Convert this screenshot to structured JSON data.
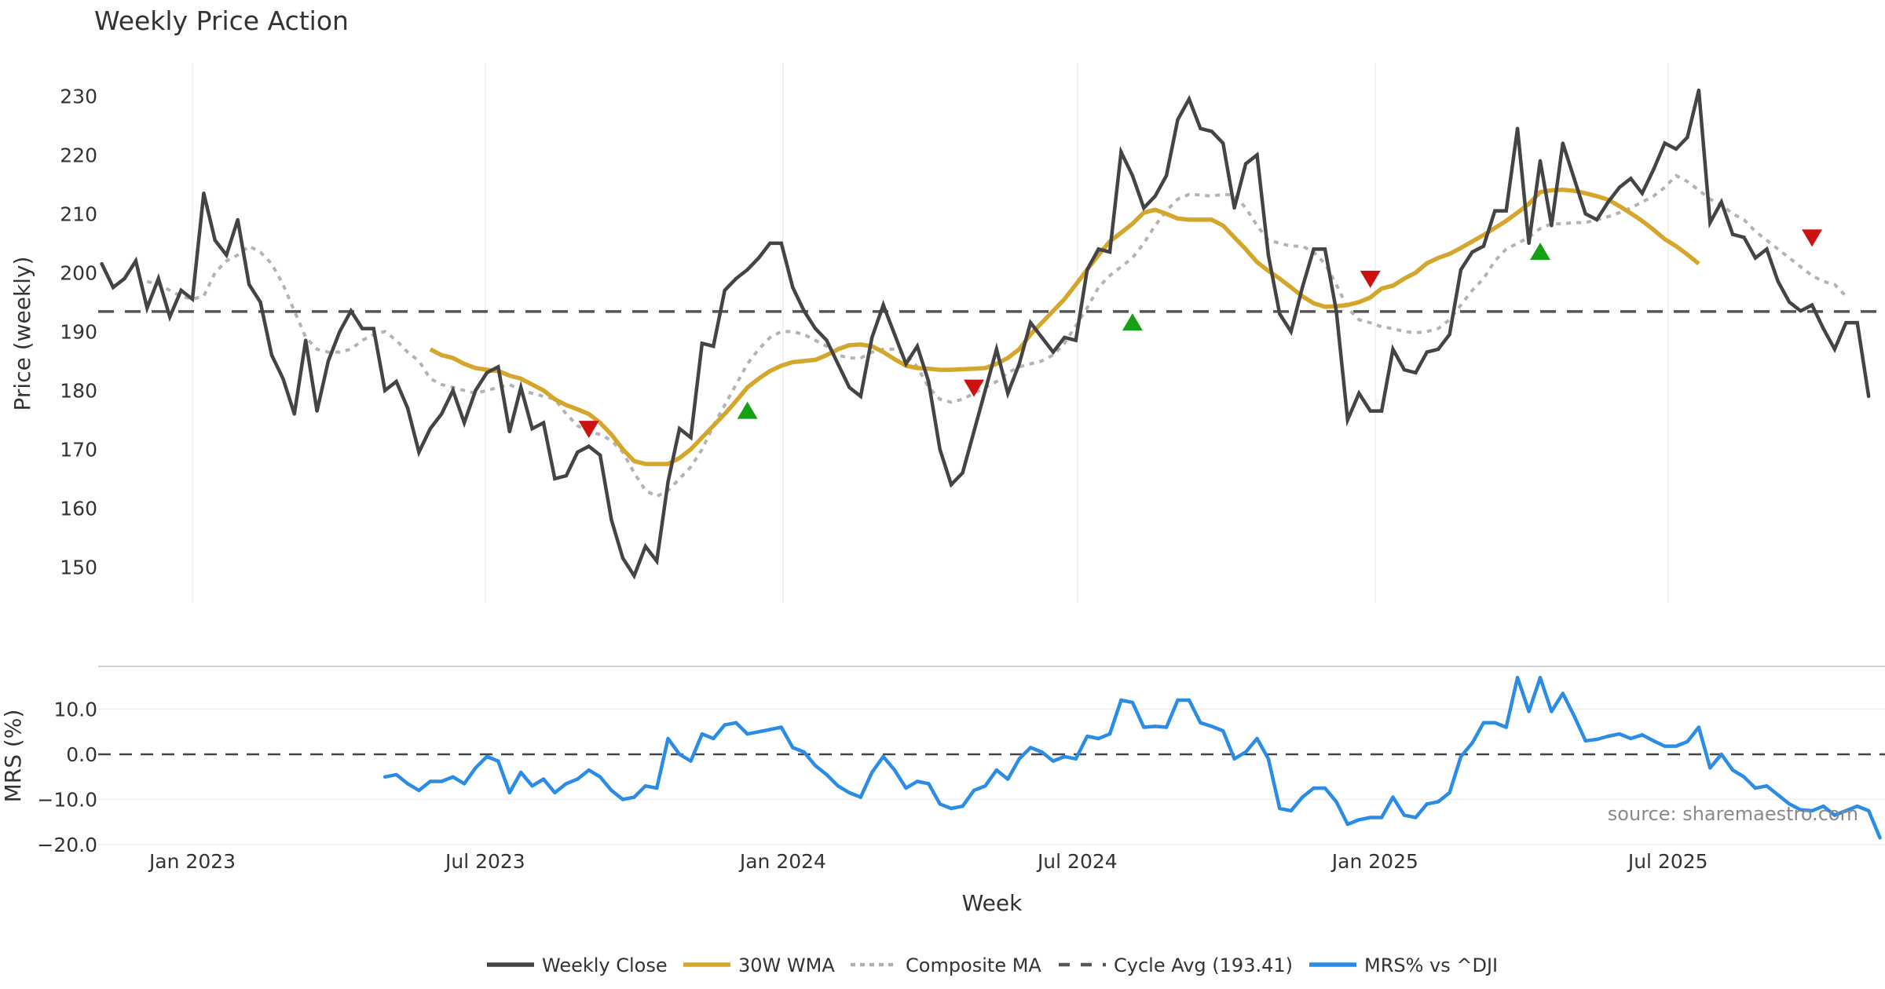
{
  "chart_data": {
    "type": "line",
    "title": "Weekly Price Action",
    "xlabel": "Week",
    "start_week": "2022-11-06",
    "x_ticks": [
      {
        "label": "Jan 2023",
        "date": "2023-01-01"
      },
      {
        "label": "Jul 2023",
        "date": "2023-07-01"
      },
      {
        "label": "Jan 2024",
        "date": "2024-01-01"
      },
      {
        "label": "Jul 2024",
        "date": "2024-07-01"
      },
      {
        "label": "Jan 2025",
        "date": "2025-01-01"
      },
      {
        "label": "Jul 2025",
        "date": "2025-07-01"
      }
    ],
    "price_panel": {
      "ylabel": "Price (weekly)",
      "ylim": [
        145,
        235
      ],
      "y_ticks": [
        "150",
        "160",
        "170",
        "180",
        "190",
        "200",
        "210",
        "220",
        "230"
      ],
      "grid": "vertical",
      "weekly_close": [
        201.5,
        197.5,
        199,
        202,
        194,
        199,
        192.5,
        197,
        195.5,
        213.5,
        205.5,
        203,
        209,
        198,
        195,
        186,
        182,
        176,
        188.5,
        176.5,
        185,
        190,
        193.5,
        190.5,
        190.5,
        180,
        181.5,
        177,
        169.5,
        173.5,
        176,
        180,
        174.5,
        180,
        183,
        184,
        173,
        180.5,
        173.5,
        174.5,
        165,
        165.5,
        169.5,
        170.5,
        169,
        158,
        151.5,
        148.5,
        153.5,
        151,
        164.5,
        173.5,
        172,
        188,
        187.5,
        197,
        199,
        200.5,
        202.5,
        205,
        205,
        197.5,
        193.5,
        190.5,
        188.5,
        184.5,
        180.5,
        179,
        189,
        194.5,
        189.5,
        184.5,
        187.5,
        181.5,
        170,
        164,
        166,
        173,
        180,
        187,
        179.5,
        184.5,
        191.5,
        189,
        186.5,
        189,
        188.5,
        200.5,
        204,
        203.5,
        220.5,
        216.5,
        211,
        213,
        216.5,
        226,
        229.5,
        224.5,
        224,
        222,
        211,
        218.5,
        220,
        203,
        193,
        190,
        197.5,
        204,
        204,
        193.5,
        175,
        179.5,
        176.5,
        176.5,
        187,
        183.5,
        183,
        186.5,
        187,
        189.5,
        200.5,
        203.5,
        204.5,
        210.5,
        210.5,
        224.5,
        205,
        219,
        208,
        222,
        216,
        210,
        209,
        212,
        214.5,
        216,
        213.5,
        217.5,
        222,
        221,
        223,
        231,
        208.5,
        212,
        206.5,
        206,
        202.5,
        204,
        198.5,
        195,
        193.5,
        194.5,
        190.5,
        187,
        191.5,
        191.5,
        179
      ],
      "wma_30w": {
        "start_index": 29,
        "values": [
          187,
          186,
          185.5,
          184.5,
          183.8,
          183.5,
          183.3,
          182.5,
          182,
          181,
          180,
          178.5,
          177.5,
          176.8,
          176,
          174.5,
          172.5,
          170,
          168,
          167.5,
          167.5,
          167.5,
          168.5,
          170,
          172,
          174,
          176,
          178.2,
          180.5,
          182,
          183.3,
          184.2,
          184.8,
          185,
          185.2,
          186,
          187,
          187.7,
          187.8,
          187.5,
          186.5,
          185.3,
          184.2,
          183.8,
          183.7,
          183.5,
          183.5,
          183.6,
          183.7,
          183.8,
          184.5,
          185.5,
          187,
          189.5,
          191.5,
          193.5,
          195.5,
          198,
          200.5,
          203,
          205.3,
          206.8,
          208.3,
          210.2,
          210.7,
          210,
          209.2,
          209,
          209,
          209,
          208,
          206,
          204,
          201.8,
          200.3,
          199,
          197.5,
          196,
          194.8,
          194.2,
          194.3,
          194.5,
          195,
          195.8,
          197.3,
          197.8,
          199,
          200,
          201.6,
          202.5,
          203.2,
          204.2,
          205.3,
          206.4,
          207.6,
          208.8,
          210.2,
          211.7,
          213.7,
          214,
          214.1,
          213.9,
          213.5,
          213,
          212.4,
          211.3,
          210.1,
          208.8,
          207.3,
          205.7,
          204.5,
          203.1,
          201.5
        ]
      },
      "composite_ma": {
        "start_index": 4,
        "values": [
          198.5,
          198,
          197,
          196,
          195.5,
          196,
          200,
          202,
          203,
          204.5,
          203.5,
          201.5,
          198,
          193.5,
          189,
          187,
          186.5,
          186.5,
          187,
          188.5,
          189.5,
          190,
          188.5,
          186.5,
          185,
          182,
          181,
          180.5,
          180,
          179.5,
          180,
          180.5,
          181,
          180,
          179.5,
          179,
          178.5,
          176,
          174,
          173,
          172.5,
          171.5,
          169.5,
          166,
          163,
          162,
          163,
          165,
          167,
          170,
          174,
          177.5,
          181,
          184.5,
          187,
          189,
          190,
          190,
          189.5,
          188.5,
          187.5,
          186,
          185.5,
          185.5,
          186.5,
          187,
          187,
          186,
          184,
          180.5,
          178.5,
          178,
          178.5,
          179.5,
          180.5,
          181.5,
          183,
          184,
          184.5,
          185,
          186,
          188,
          191,
          194,
          197.5,
          199.5,
          201,
          202.5,
          205,
          208,
          210.5,
          212.5,
          213.3,
          213.2,
          213,
          213.3,
          213.2,
          211,
          208,
          205.5,
          205,
          204.5,
          204.5,
          203.5,
          201.5,
          198,
          194,
          192,
          191.5,
          190.8,
          190.5,
          190,
          189.8,
          190,
          190.5,
          192,
          194.5,
          197,
          199,
          202,
          204,
          205,
          206,
          207.5,
          208.3,
          208.3,
          208.5,
          208.5,
          209,
          209.5,
          210.2,
          211,
          212,
          213,
          214.5,
          216.5,
          215.5,
          214,
          212.5,
          211.5,
          210,
          209,
          207,
          205.5,
          204,
          202.5,
          201,
          199.5,
          198.5,
          198,
          196
        ]
      },
      "cycle_avg": 193.41,
      "signals": [
        {
          "type": "sell",
          "index": 43,
          "value": 173.5
        },
        {
          "type": "buy",
          "index": 57,
          "value": 176.5
        },
        {
          "type": "sell",
          "index": 77,
          "value": 180.5
        },
        {
          "type": "buy",
          "index": 91,
          "value": 191.5
        },
        {
          "type": "sell",
          "index": 112,
          "value": 199
        },
        {
          "type": "buy",
          "index": 127,
          "value": 203.5
        },
        {
          "type": "sell",
          "index": 151,
          "value": 206
        }
      ]
    },
    "mrs_panel": {
      "ylabel": "MRS (%)",
      "ylim": [
        -21,
        19
      ],
      "y_ticks": [
        "−20.0",
        "−10.0",
        "0.0",
        "10.0"
      ],
      "zero_line": 0,
      "start_index": 25,
      "values": [
        -5,
        -4.5,
        -6.5,
        -8,
        -6,
        -6,
        -5,
        -6.5,
        -3,
        -0.5,
        -1.5,
        -8.5,
        -4,
        -7,
        -5.5,
        -8.5,
        -6.5,
        -5.5,
        -3.5,
        -5,
        -8,
        -10,
        -9.5,
        -7,
        -7.5,
        3.5,
        0,
        -1.5,
        4.5,
        3.5,
        6.5,
        7,
        4.5,
        5,
        5.5,
        6,
        1.5,
        0.5,
        -2.5,
        -4.5,
        -7,
        -8.5,
        -9.5,
        -4,
        -0.5,
        -3.5,
        -7.5,
        -6,
        -6.5,
        -11,
        -12,
        -11.5,
        -8,
        -7,
        -3.5,
        -5.5,
        -1,
        1.5,
        0.5,
        -1.5,
        -0.5,
        -1,
        4,
        3.5,
        4.5,
        12,
        11.5,
        6,
        6.2,
        6,
        12,
        12,
        7,
        6.2,
        5.2,
        -1,
        0.5,
        3.5,
        -1,
        -12,
        -12.5,
        -9.5,
        -7.5,
        -7.5,
        -10.5,
        -15.5,
        -14.5,
        -14,
        -14,
        -9.5,
        -13.5,
        -14,
        -11,
        -10.5,
        -8.5,
        -0.5,
        2.5,
        7,
        7,
        6,
        17,
        9.5,
        17,
        9.5,
        13.5,
        8.5,
        3,
        3.3,
        4,
        4.5,
        3.5,
        4.3,
        3,
        1.8,
        1.8,
        2.8,
        6,
        -3,
        0,
        -3.5,
        -5,
        -7.5,
        -7,
        -9,
        -11,
        -12.3,
        -12.5,
        -11.5,
        -13.5,
        -12.5,
        -11.5,
        -12.5,
        -18.5
      ]
    },
    "legend": {
      "placement": "bottom-center",
      "items": [
        {
          "label": "Weekly Close",
          "color": "#444444",
          "style": "solid"
        },
        {
          "label": "30W WMA",
          "color": "#d4a72c",
          "style": "solid"
        },
        {
          "label": "Composite MA",
          "color": "#b0b0b0",
          "style": "dotted"
        },
        {
          "label": "Cycle Avg (193.41)",
          "color": "#555555",
          "style": "dashed"
        },
        {
          "label": "MRS% vs ^DJI",
          "color": "#2b8ce6",
          "style": "solid"
        }
      ]
    },
    "annotation": "source: sharemaestro.com",
    "colors": {
      "close": "#444444",
      "wma": "#d4a72c",
      "composite": "#b3b3b3",
      "cycle": "#555555",
      "mrs": "#2b8ce6",
      "buy": "#15a015",
      "sell": "#cc1111"
    }
  }
}
